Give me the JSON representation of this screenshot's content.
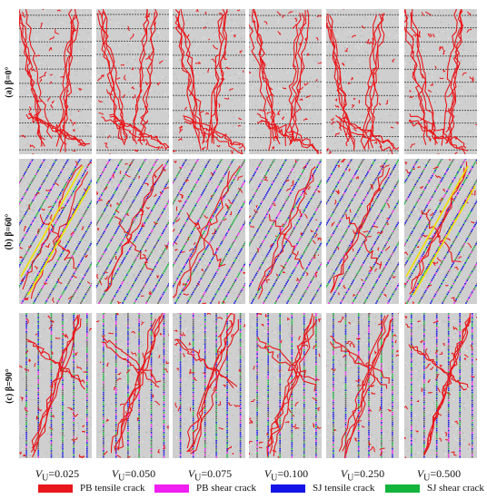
{
  "rows": [
    {
      "label": "(a) β=0°",
      "joint_angle_deg": 0
    },
    {
      "label": "(b) β=60°",
      "joint_angle_deg": 60
    },
    {
      "label": "(c) β=90°",
      "joint_angle_deg": 90
    }
  ],
  "columns": [
    {
      "prefix": "V",
      "sub": "U",
      "value": "=0.025"
    },
    {
      "prefix": "V",
      "sub": "U",
      "value": "=0.050"
    },
    {
      "prefix": "V",
      "sub": "U",
      "value": "=0.075"
    },
    {
      "prefix": "V",
      "sub": "U",
      "value": "=0.100"
    },
    {
      "prefix": "V",
      "sub": "U",
      "value": "=0.250"
    },
    {
      "prefix": "V",
      "sub": "U",
      "value": "=0.500"
    }
  ],
  "legend": [
    {
      "label": "PB tensile crack",
      "color": "#e8171b"
    },
    {
      "label": "PB shear crack",
      "color": "#f01ef0"
    },
    {
      "label": "SJ tensile crack",
      "color": "#1414e6"
    },
    {
      "label": "SJ shear crack",
      "color": "#12b43c"
    }
  ],
  "colors": {
    "rock_matrix": "#cfcfcf",
    "joint_line": "#5a5a5a",
    "highlight": "#f0e000"
  }
}
